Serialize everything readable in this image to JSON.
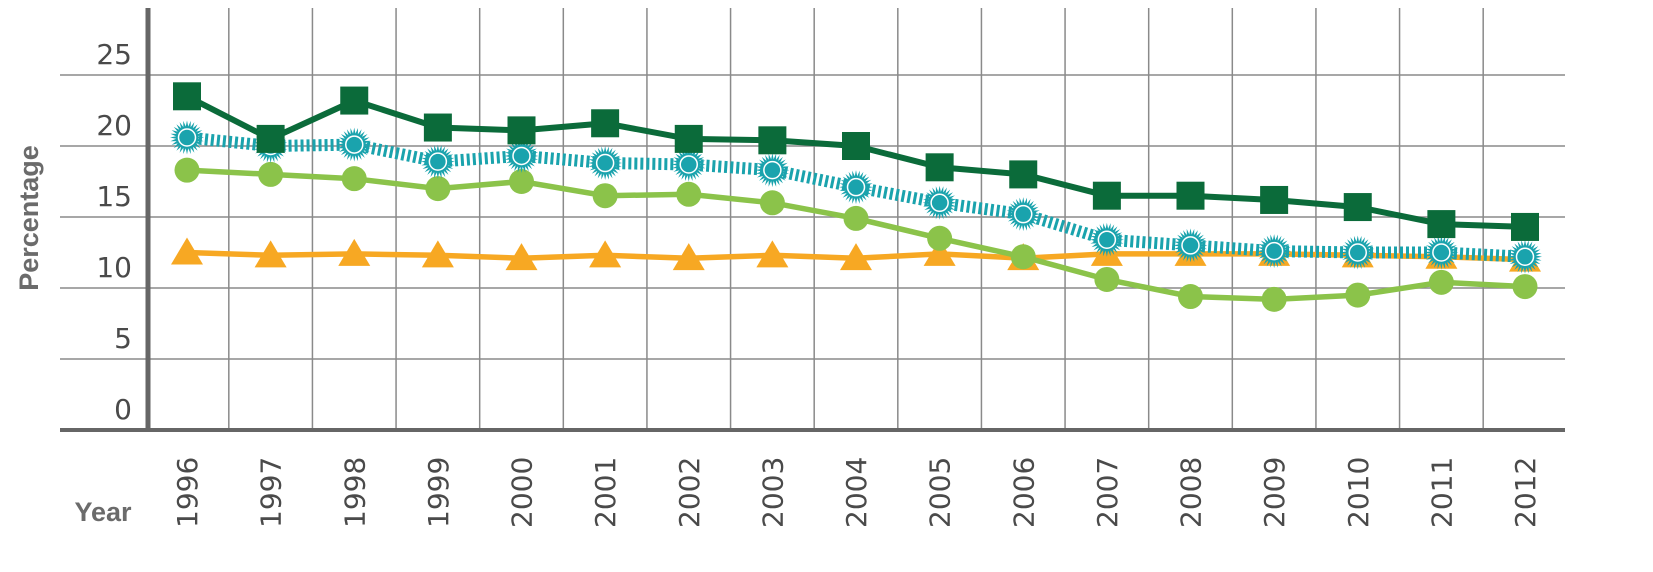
{
  "chart_data": {
    "type": "line",
    "title": "",
    "xlabel": "Year",
    "ylabel": "Percentage",
    "ylim": [
      0,
      25
    ],
    "yticks": [
      0,
      5,
      10,
      15,
      20,
      25
    ],
    "grid": true,
    "legend": "none",
    "categories": [
      "1996",
      "1997",
      "1998",
      "1999",
      "2000",
      "2001",
      "2002",
      "2003",
      "2004",
      "2005",
      "2006",
      "2007",
      "2008",
      "2009",
      "2010",
      "2011",
      "2012"
    ],
    "series": [
      {
        "marker": "square",
        "line_style": "solid",
        "color": "#0b6b3a",
        "values": [
          23.5,
          20.5,
          23.2,
          21.3,
          21.1,
          21.6,
          20.5,
          20.4,
          20.0,
          18.5,
          18.0,
          16.5,
          16.5,
          16.2,
          15.7,
          14.5,
          14.3
        ]
      },
      {
        "marker": "sunburst",
        "line_style": "dotted",
        "color": "#1aa3ad",
        "values": [
          20.6,
          20.0,
          20.1,
          18.9,
          19.3,
          18.8,
          18.7,
          18.3,
          17.1,
          16.0,
          15.2,
          13.4,
          13.0,
          12.6,
          12.5,
          12.5,
          12.2
        ]
      },
      {
        "marker": "circle",
        "line_style": "solid",
        "color": "#8bc34a",
        "values": [
          18.3,
          18.0,
          17.7,
          17.0,
          17.5,
          16.5,
          16.6,
          16.0,
          14.9,
          13.5,
          12.2,
          10.6,
          9.4,
          9.2,
          9.5,
          10.4,
          10.1
        ]
      },
      {
        "marker": "triangle",
        "line_style": "solid",
        "color": "#f7a823",
        "values": [
          12.5,
          12.3,
          12.4,
          12.3,
          12.1,
          12.3,
          12.1,
          12.3,
          12.1,
          12.4,
          12.1,
          12.4,
          12.4,
          12.4,
          12.3,
          12.2,
          12.0
        ]
      }
    ]
  }
}
